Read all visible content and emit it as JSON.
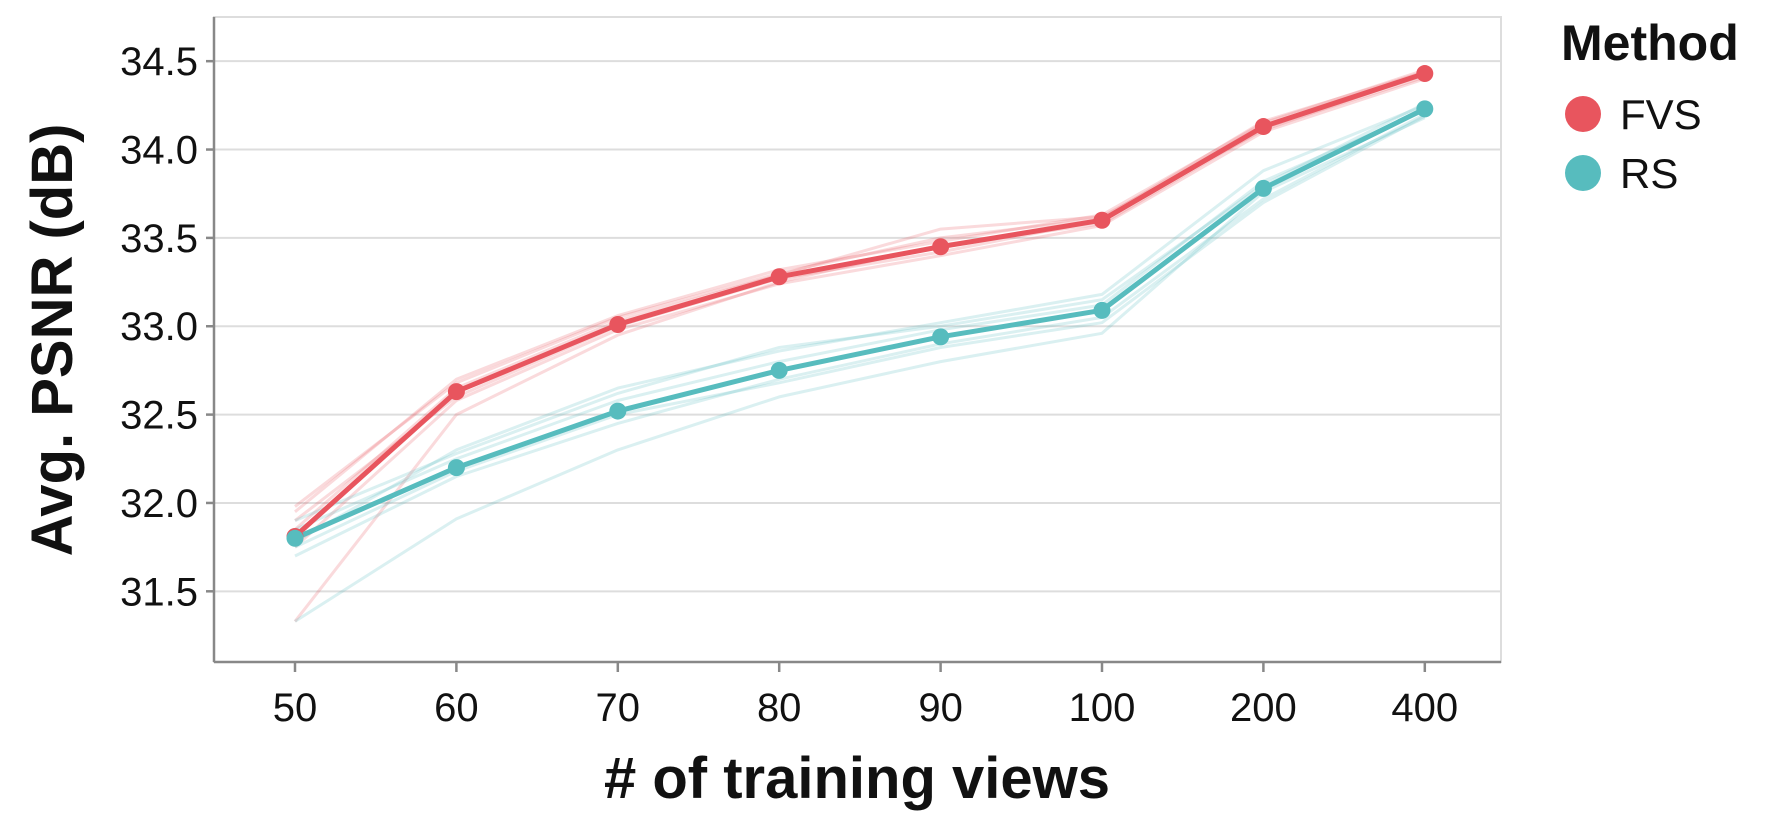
{
  "chart_data": {
    "type": "line",
    "xlabel": "# of training views",
    "ylabel": "Avg. PSNR (dB)",
    "categories": [
      "50",
      "60",
      "70",
      "80",
      "90",
      "100",
      "200",
      "400"
    ],
    "yticks": [
      "31.5",
      "32.0",
      "32.5",
      "33.0",
      "33.5",
      "34.0",
      "34.5"
    ],
    "ylim": [
      31.1,
      34.75
    ],
    "grid": true,
    "legend": {
      "title": "Method",
      "placement": "top-right outside"
    },
    "series": [
      {
        "name": "FVS",
        "color": "#e8555e",
        "values": [
          31.81,
          32.63,
          33.01,
          33.28,
          33.45,
          33.6,
          34.13,
          34.43
        ],
        "runs": [
          [
            31.33,
            32.5,
            32.95,
            33.25,
            33.46,
            33.58,
            34.12,
            34.41
          ],
          [
            31.98,
            32.68,
            33.05,
            33.3,
            33.5,
            33.61,
            34.16,
            34.44
          ],
          [
            31.9,
            32.6,
            33.0,
            33.27,
            33.42,
            33.6,
            34.14,
            34.42
          ],
          [
            31.85,
            32.65,
            33.03,
            33.29,
            33.55,
            33.62,
            34.11,
            34.43
          ],
          [
            31.75,
            32.58,
            32.98,
            33.24,
            33.4,
            33.57,
            34.1,
            34.4
          ],
          [
            31.95,
            32.7,
            33.06,
            33.32,
            33.48,
            33.63,
            34.15,
            34.45
          ]
        ]
      },
      {
        "name": "RS",
        "color": "#57bcbe",
        "values": [
          31.8,
          32.2,
          32.52,
          32.75,
          32.94,
          33.09,
          33.78,
          34.23
        ],
        "runs": [
          [
            31.33,
            31.91,
            32.3,
            32.6,
            32.8,
            32.96,
            33.76,
            34.18
          ],
          [
            31.78,
            32.3,
            32.65,
            32.86,
            33.02,
            33.18,
            33.88,
            34.25
          ],
          [
            31.85,
            32.25,
            32.58,
            32.8,
            32.98,
            33.12,
            33.82,
            34.22
          ],
          [
            31.7,
            32.15,
            32.45,
            32.7,
            32.9,
            33.05,
            33.72,
            34.2
          ],
          [
            31.9,
            32.28,
            32.62,
            32.88,
            33.0,
            33.15,
            33.8,
            34.26
          ],
          [
            31.75,
            32.18,
            32.5,
            32.68,
            32.88,
            33.02,
            33.7,
            34.19
          ]
        ]
      }
    ]
  }
}
